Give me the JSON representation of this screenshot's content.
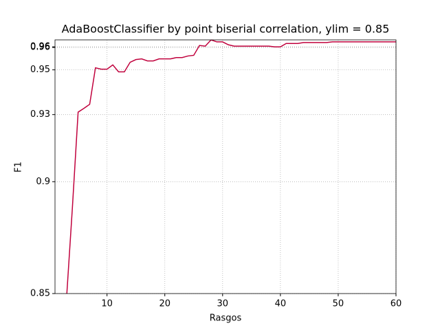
{
  "chart_data": {
    "type": "line",
    "title": "AdaBoostClassifier by point biserial correlation, ylim = 0.85",
    "x_label": "Rasgos",
    "y_label": "F1",
    "x": [
      3,
      4,
      5,
      6,
      7,
      8,
      9,
      10,
      11,
      12,
      13,
      14,
      15,
      16,
      17,
      18,
      19,
      20,
      21,
      22,
      23,
      24,
      25,
      26,
      27,
      28,
      29,
      30,
      31,
      32,
      33,
      34,
      35,
      36,
      37,
      38,
      39,
      40,
      41,
      42,
      43,
      44,
      45,
      46,
      47,
      48,
      49,
      50,
      51,
      52,
      53,
      54,
      55,
      56,
      57,
      58,
      59,
      60
    ],
    "series": [
      {
        "name": "F1",
        "color": "#c0003c",
        "values": [
          0.848,
          0.888,
          0.9311,
          0.9328,
          0.9346,
          0.9509,
          0.9503,
          0.9503,
          0.9522,
          0.9491,
          0.9491,
          0.9534,
          0.9546,
          0.9549,
          0.954,
          0.954,
          0.9549,
          0.9549,
          0.9549,
          0.9555,
          0.9555,
          0.9562,
          0.9565,
          0.9609,
          0.9606,
          0.9634,
          0.9625,
          0.9625,
          0.9612,
          0.9606,
          0.9606,
          0.9606,
          0.9606,
          0.9606,
          0.9606,
          0.9606,
          0.9603,
          0.9603,
          0.9618,
          0.9618,
          0.9618,
          0.9622,
          0.9622,
          0.9622,
          0.9622,
          0.9622,
          0.9625,
          0.9625,
          0.9625,
          0.9625,
          0.9625,
          0.9625,
          0.9625,
          0.9625,
          0.9625,
          0.9625,
          0.9625,
          0.9625
        ]
      }
    ],
    "xlim": [
      1,
      60
    ],
    "ylim": [
      0.85,
      0.9634
    ],
    "xticks": [
      10,
      20,
      30,
      40,
      50,
      60
    ],
    "yticks": [
      0.85,
      0.9,
      0.93,
      0.95,
      0.96,
      {
        "value": 0.9603,
        "label": "0.96"
      }
    ],
    "grid": true
  }
}
